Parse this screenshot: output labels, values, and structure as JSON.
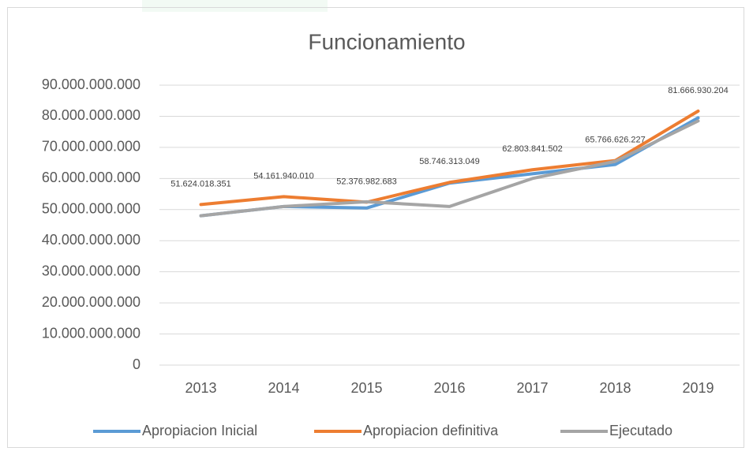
{
  "chart_data": {
    "type": "line",
    "title": "Funcionamiento",
    "categories": [
      "2013",
      "2014",
      "2015",
      "2016",
      "2017",
      "2018",
      "2019"
    ],
    "series": [
      {
        "name": "Apropiacion Inicial",
        "color": "#5b9bd5",
        "values": [
          48000000000,
          51000000000,
          50500000000,
          58500000000,
          61500000000,
          64500000000,
          79500000000
        ]
      },
      {
        "name": "Apropiacion definitiva",
        "color": "#ed7d31",
        "values": [
          51624018351,
          54161940010,
          52376982683,
          58746313049,
          62803841502,
          65766626227,
          81666930204
        ],
        "value_labels": [
          "51.624.018.351",
          "54.161.940.010",
          "52.376.982.683",
          "58.746.313.049",
          "62.803.841.502",
          "65.766.626.227",
          "81.666.930.204"
        ]
      },
      {
        "name": "Ejecutado",
        "color": "#a5a5a5",
        "values": [
          48000000000,
          51000000000,
          52500000000,
          51000000000,
          60000000000,
          65500000000,
          78500000000
        ]
      }
    ],
    "ylim": [
      0,
      90000000000
    ],
    "yticks": [
      0,
      {
        "value": 10000000000,
        "label": "10.000.000.000"
      },
      {
        "value": 20000000000,
        "label": "20.000.000.000"
      },
      {
        "value": 30000000000,
        "label": "30.000.000.000"
      },
      {
        "value": 40000000000,
        "label": "40.000.000.000"
      },
      {
        "value": 50000000000,
        "label": "50.000.000.000"
      },
      {
        "value": 60000000000,
        "label": "60.000.000.000"
      },
      {
        "value": 70000000000,
        "label": "70.000.000.000"
      },
      {
        "value": 80000000000,
        "label": "80.000.000.000"
      },
      {
        "value": 90000000000,
        "label": "90.000.000.000"
      }
    ],
    "grid": true,
    "legend": "bottom"
  }
}
